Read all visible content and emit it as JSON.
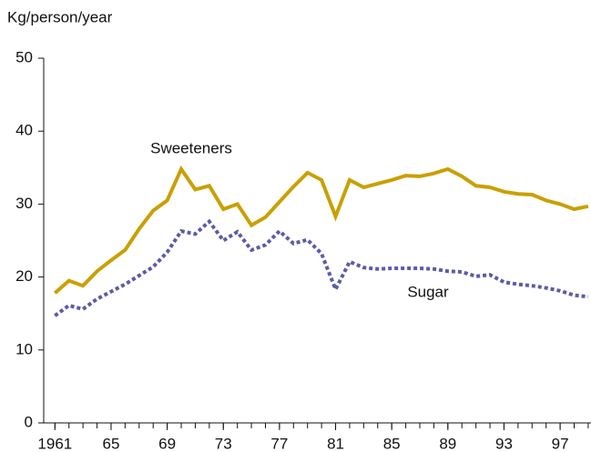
{
  "chart_data": {
    "type": "line",
    "y_label": "Kg/person/year",
    "x": [
      1961,
      1962,
      1963,
      1964,
      1965,
      1966,
      1967,
      1968,
      1969,
      1970,
      1971,
      1972,
      1973,
      1974,
      1975,
      1976,
      1977,
      1978,
      1979,
      1980,
      1981,
      1982,
      1983,
      1984,
      1985,
      1986,
      1987,
      1988,
      1989,
      1990,
      1991,
      1992,
      1993,
      1994,
      1995,
      1996,
      1997,
      1998,
      1999
    ],
    "series": [
      {
        "name": "Sweeteners",
        "color": "#c9a000",
        "style": "solid",
        "values": [
          17.8,
          19.5,
          18.8,
          20.8,
          22.3,
          23.7,
          26.6,
          29.1,
          30.5,
          34.8,
          32.0,
          32.5,
          29.3,
          30.0,
          27.1,
          28.2,
          30.3,
          32.4,
          34.3,
          33.3,
          28.3,
          33.3,
          32.3,
          32.8,
          33.3,
          33.9,
          33.8,
          34.2,
          34.8,
          33.8,
          32.5,
          32.3,
          31.7,
          31.4,
          31.3,
          30.5,
          30.0,
          29.3,
          29.7
        ]
      },
      {
        "name": "Sugar",
        "color": "#5b5ba8",
        "style": "dotted",
        "values": [
          14.7,
          16.1,
          15.6,
          17.0,
          18.0,
          19.0,
          20.2,
          21.4,
          23.4,
          26.3,
          25.9,
          27.6,
          25.0,
          26.2,
          23.7,
          24.4,
          26.3,
          24.6,
          25.1,
          23.2,
          18.3,
          22.1,
          21.3,
          21.1,
          21.2,
          21.2,
          21.2,
          21.1,
          20.8,
          20.7,
          20.1,
          20.3,
          19.3,
          19.0,
          18.8,
          18.5,
          18.1,
          17.5,
          17.3
        ]
      }
    ],
    "xlim": [
      1960.2,
      1999.2
    ],
    "xticks": [
      1961,
      {
        "value": 1965,
        "label": "65"
      },
      {
        "value": 1969,
        "label": "69"
      },
      {
        "value": 1973,
        "label": "73"
      },
      {
        "value": 1977,
        "label": "77"
      },
      {
        "value": 1981,
        "label": "81"
      },
      {
        "value": 1985,
        "label": "85"
      },
      {
        "value": 1989,
        "label": "89"
      },
      {
        "value": 1993,
        "label": "93"
      },
      {
        "value": 1997,
        "label": "97"
      }
    ],
    "ylim": [
      0,
      50
    ],
    "yticks": [
      0,
      10,
      20,
      30,
      40,
      50
    ],
    "grid": false
  }
}
